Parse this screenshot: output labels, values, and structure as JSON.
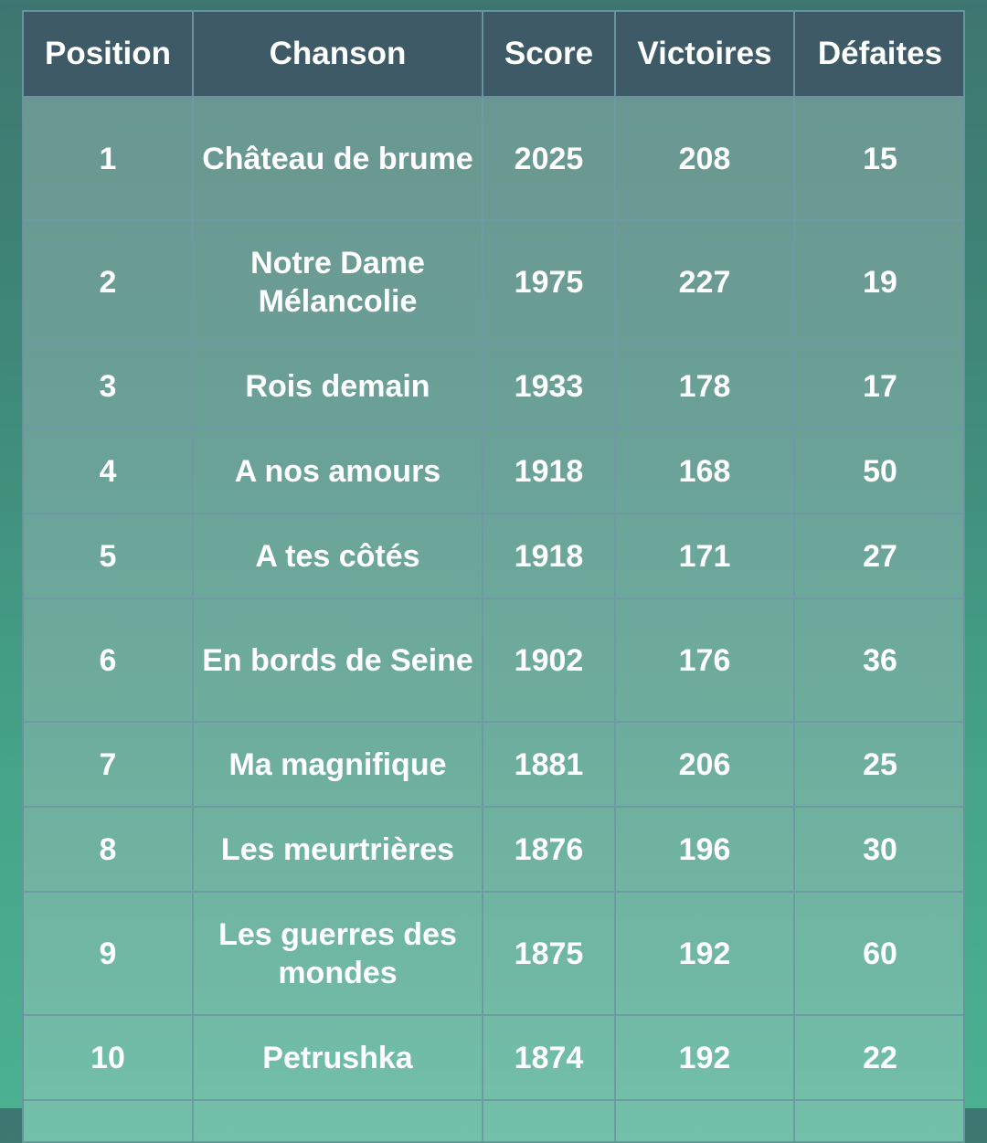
{
  "table": {
    "headers": [
      "Position",
      "Chanson",
      "Score",
      "Victoires",
      "Défaites"
    ],
    "rows": [
      {
        "position": "1",
        "chanson": "Château de brume",
        "score": "2025",
        "victoires": "208",
        "defaites": "15"
      },
      {
        "position": "2",
        "chanson": "Notre Dame Mélancolie",
        "score": "1975",
        "victoires": "227",
        "defaites": "19"
      },
      {
        "position": "3",
        "chanson": "Rois demain",
        "score": "1933",
        "victoires": "178",
        "defaites": "17"
      },
      {
        "position": "4",
        "chanson": "A nos amours",
        "score": "1918",
        "victoires": "168",
        "defaites": "50"
      },
      {
        "position": "5",
        "chanson": "A tes côtés",
        "score": "1918",
        "victoires": "171",
        "defaites": "27"
      },
      {
        "position": "6",
        "chanson": "En bords de Seine",
        "score": "1902",
        "victoires": "176",
        "defaites": "36"
      },
      {
        "position": "7",
        "chanson": "Ma magnifique",
        "score": "1881",
        "victoires": "206",
        "defaites": "25"
      },
      {
        "position": "8",
        "chanson": "Les meurtrières",
        "score": "1876",
        "victoires": "196",
        "defaites": "30"
      },
      {
        "position": "9",
        "chanson": "Les guerres des mondes",
        "score": "1875",
        "victoires": "192",
        "defaites": "60"
      },
      {
        "position": "10",
        "chanson": "Petrushka",
        "score": "1874",
        "victoires": "192",
        "defaites": "22"
      }
    ]
  },
  "colors": {
    "header_bg": "#3d5a66",
    "text": "#ffffff",
    "grid_line": "#6e9aa4"
  }
}
